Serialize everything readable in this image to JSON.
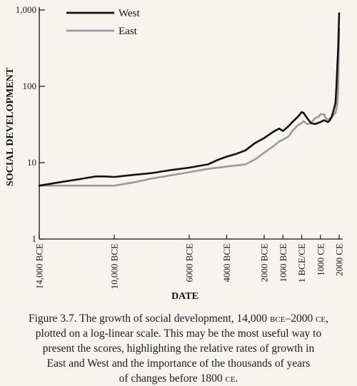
{
  "chart_data": {
    "type": "line",
    "title": "",
    "xlabel": "DATE",
    "ylabel": "SOCIAL DEVELOPMENT",
    "yscale": "log",
    "ylim": [
      1,
      1000
    ],
    "xlim": [
      -14000,
      2000
    ],
    "grid": false,
    "legend_position": "top-left",
    "y_ticks": [
      {
        "value": 1,
        "label": "1"
      },
      {
        "value": 10,
        "label": "10"
      },
      {
        "value": 100,
        "label": "100"
      },
      {
        "value": 1000,
        "label": "1,000"
      }
    ],
    "x_ticks": [
      {
        "value": -14000,
        "label": "14,000 BCE"
      },
      {
        "value": -10000,
        "label": "10,000 BCE"
      },
      {
        "value": -6000,
        "label": "6000 BCE"
      },
      {
        "value": -4000,
        "label": "4000 BCE"
      },
      {
        "value": -2000,
        "label": "2000 BCE"
      },
      {
        "value": -1000,
        "label": "1000 BCE"
      },
      {
        "value": 0,
        "label": "1 BCE/CE"
      },
      {
        "value": 1000,
        "label": "1000 CE"
      },
      {
        "value": 2000,
        "label": "2000 CE"
      }
    ],
    "series": [
      {
        "name": "West",
        "color": "#111111",
        "points": [
          [
            -14000,
            5.0
          ],
          [
            -13000,
            5.5
          ],
          [
            -12000,
            6.0
          ],
          [
            -11500,
            6.3
          ],
          [
            -11000,
            6.6
          ],
          [
            -10500,
            6.6
          ],
          [
            -10000,
            6.5
          ],
          [
            -9000,
            6.9
          ],
          [
            -8000,
            7.3
          ],
          [
            -7000,
            8.0
          ],
          [
            -6000,
            8.6
          ],
          [
            -5000,
            9.5
          ],
          [
            -4500,
            10.8
          ],
          [
            -4000,
            12.0
          ],
          [
            -3500,
            13.0
          ],
          [
            -3000,
            14.5
          ],
          [
            -2500,
            18.0
          ],
          [
            -2000,
            21.0
          ],
          [
            -1500,
            25.5
          ],
          [
            -1200,
            28.0
          ],
          [
            -1000,
            26.0
          ],
          [
            -700,
            30.0
          ],
          [
            -500,
            34.0
          ],
          [
            -200,
            40.0
          ],
          [
            0,
            46.0
          ],
          [
            100,
            45.0
          ],
          [
            300,
            38.0
          ],
          [
            500,
            33.0
          ],
          [
            700,
            32.0
          ],
          [
            1000,
            34.0
          ],
          [
            1200,
            36.0
          ],
          [
            1400,
            34.0
          ],
          [
            1500,
            36.0
          ],
          [
            1600,
            40.0
          ],
          [
            1700,
            48.0
          ],
          [
            1800,
            60.0
          ],
          [
            1850,
            95.0
          ],
          [
            1900,
            180.0
          ],
          [
            1950,
            330.0
          ],
          [
            1975,
            550.0
          ],
          [
            2000,
            906.0
          ]
        ]
      },
      {
        "name": "East",
        "color": "#9a9a9a",
        "points": [
          [
            -14000,
            5.0
          ],
          [
            -13000,
            5.0
          ],
          [
            -12000,
            5.0
          ],
          [
            -11000,
            5.0
          ],
          [
            -10000,
            5.0
          ],
          [
            -9000,
            5.5
          ],
          [
            -8000,
            6.2
          ],
          [
            -7000,
            6.8
          ],
          [
            -6000,
            7.5
          ],
          [
            -5000,
            8.3
          ],
          [
            -4000,
            8.9
          ],
          [
            -3000,
            9.5
          ],
          [
            -2500,
            11.0
          ],
          [
            -2000,
            13.5
          ],
          [
            -1500,
            16.5
          ],
          [
            -1200,
            19.0
          ],
          [
            -1000,
            20.0
          ],
          [
            -700,
            22.0
          ],
          [
            -500,
            26.0
          ],
          [
            -200,
            31.0
          ],
          [
            0,
            33.0
          ],
          [
            100,
            35.0
          ],
          [
            300,
            32.0
          ],
          [
            500,
            33.0
          ],
          [
            700,
            38.0
          ],
          [
            900,
            40.0
          ],
          [
            1000,
            43.0
          ],
          [
            1200,
            43.0
          ],
          [
            1300,
            38.0
          ],
          [
            1400,
            37.0
          ],
          [
            1500,
            38.0
          ],
          [
            1600,
            39.0
          ],
          [
            1700,
            42.0
          ],
          [
            1800,
            45.0
          ],
          [
            1850,
            50.0
          ],
          [
            1900,
            60.0
          ],
          [
            1950,
            90.0
          ],
          [
            1975,
            250.0
          ],
          [
            2000,
            565.0
          ]
        ]
      }
    ],
    "annotations": []
  },
  "caption": {
    "line1_pre": "Figure 3.7. The growth of social development, 14,000 ",
    "bce": "bce",
    "line1_mid": "–2000 ",
    "ce": "ce",
    "line1_post": ",",
    "line2": "plotted on a log-linear scale. This may be the most useful way to",
    "line3": "present the scores, highlighting the relative rates of growth in",
    "line4": "East and West and the importance of the thousands of years",
    "line5_pre": "of changes before 1800 ",
    "ce2": "ce",
    "line5_post": "."
  }
}
